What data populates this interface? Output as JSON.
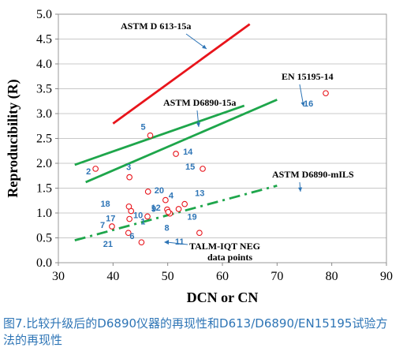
{
  "chart_data": {
    "type": "scatter",
    "xlabel": "DCN or CN",
    "ylabel": "Reproducibility (R)",
    "xlim": [
      30,
      90
    ],
    "ylim": [
      0,
      5
    ],
    "xticks": [
      "30",
      "40",
      "50",
      "60",
      "70",
      "80",
      "90"
    ],
    "yticks": [
      "0.0",
      "0.5",
      "1.0",
      "1.5",
      "2.0",
      "2.5",
      "3.0",
      "3.5",
      "4.0",
      "4.5",
      "5.0"
    ],
    "grid": true,
    "series": [
      {
        "name": "ASTM D 613-15a",
        "kind": "line",
        "color": "#e8141b",
        "dash": "solid",
        "x": [
          40,
          65
        ],
        "y": [
          2.8,
          4.8
        ]
      },
      {
        "name": "ASTM D6890-15a",
        "kind": "line",
        "color": "#1ea64b",
        "dash": "solid",
        "x": [
          33,
          64
        ],
        "y": [
          1.97,
          3.16
        ]
      },
      {
        "name": "EN 15195-14",
        "kind": "line",
        "color": "#1ea64b",
        "dash": "solid",
        "x": [
          35,
          70
        ],
        "y": [
          1.62,
          3.28
        ]
      },
      {
        "name": "ASTM D6890-mILS",
        "kind": "line",
        "color": "#1ea64b",
        "dash": "dashdot",
        "x": [
          33,
          70
        ],
        "y": [
          0.45,
          1.55
        ]
      },
      {
        "name": "TALM-IQT NEG data points",
        "kind": "scatter",
        "color": "#e8141b",
        "x": [
          43.3,
          36.8,
          43.0,
          49.6,
          46.8,
          45.2,
          39.8,
          50.4,
          49.9,
          46.3,
          55.8,
          52.0,
          53.1,
          51.5,
          56.4,
          78.9,
          43.0,
          42.9,
          50.1,
          46.4,
          42.8
        ],
        "y": [
          1.04,
          1.89,
          1.72,
          1.26,
          2.56,
          0.41,
          0.73,
          0.99,
          1.07,
          0.93,
          0.6,
          1.08,
          1.18,
          2.19,
          1.89,
          3.41,
          0.88,
          1.13,
          1.02,
          1.43,
          0.6
        ],
        "labels": [
          "1",
          "2",
          "3",
          "4",
          "5",
          "6",
          "7",
          "8",
          "9",
          "10",
          "11",
          "12",
          "13",
          "14",
          "15",
          "16",
          "17",
          "18",
          "19",
          "20",
          "21"
        ]
      }
    ],
    "line_labels": [
      "ASTM D 613-15a",
      "ASTM D6890-15a",
      "EN 15195-14",
      "ASTM D6890-mILS"
    ],
    "point_legend": [
      "TALM-IQT NEG",
      "data points"
    ]
  },
  "caption": "图7.比较升级后的D6890仪器的再现性和D613/D6890/EN15195试验方法的再现性"
}
